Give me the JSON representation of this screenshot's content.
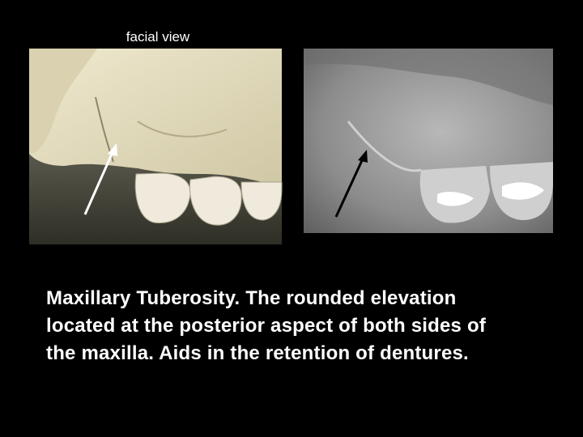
{
  "image_label": "facial view",
  "caption": {
    "lines": [
      "Maxillary Tuberosity. The rounded elevation",
      "located at the posterior aspect of both sides of",
      "the maxilla. Aids in the retention of dentures."
    ]
  }
}
